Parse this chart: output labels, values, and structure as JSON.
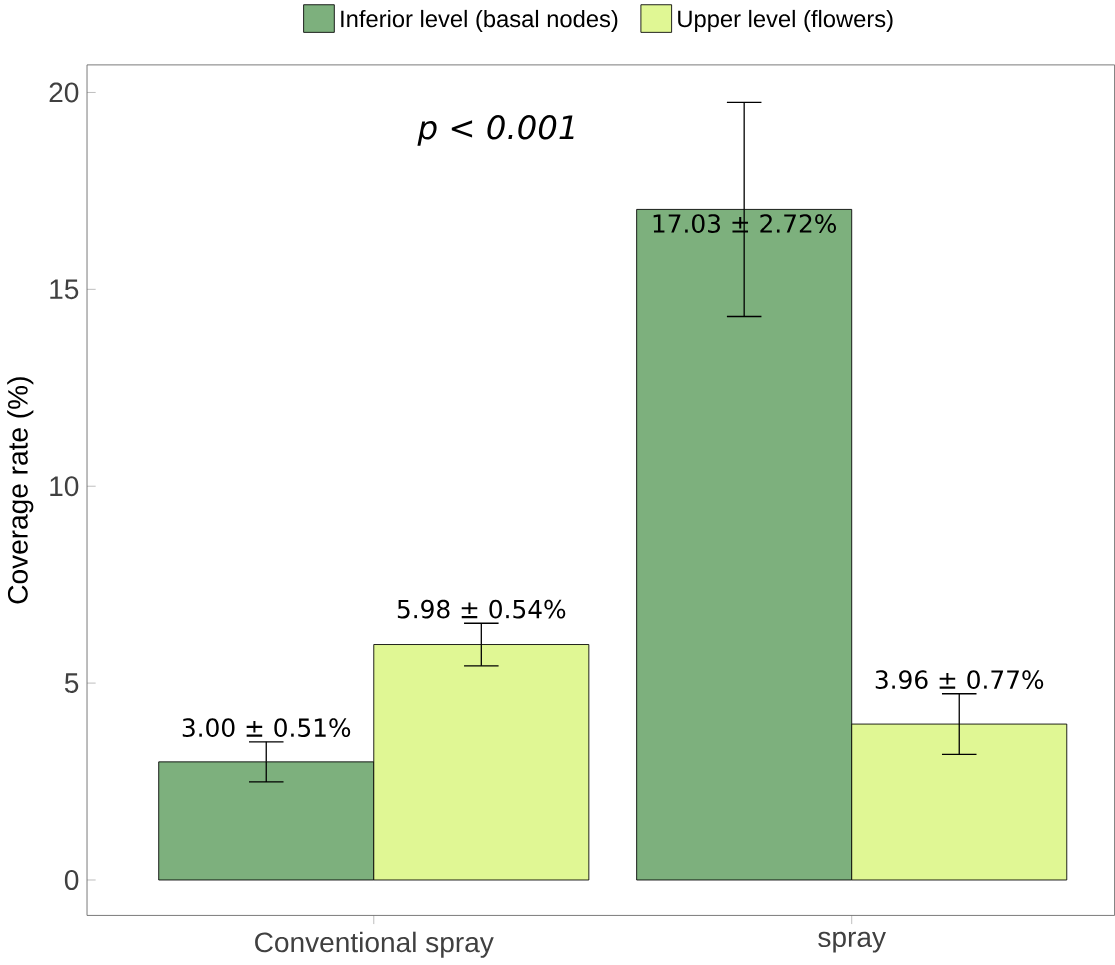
{
  "chart_data": {
    "type": "bar",
    "ylabel": "Coverage rate (%)",
    "categories": [
      "Conventional  spray",
      "spray"
    ],
    "series": [
      {
        "name": "Inferior level (basal nodes)",
        "color": "#7db07d",
        "values": [
          3.0,
          17.03
        ],
        "errors": [
          0.51,
          2.72
        ],
        "value_labels": [
          "3.00 ± 0.51%",
          "17.03 ± 2.72%"
        ]
      },
      {
        "name": "Upper level (flowers)",
        "color": "#e0f794",
        "values": [
          5.98,
          3.96
        ],
        "errors": [
          0.54,
          0.77
        ],
        "value_labels": [
          "5.98 ± 0.54%",
          "3.96 ± 0.77%"
        ]
      }
    ],
    "annotations": [
      "p < 0.001"
    ],
    "ylim": [
      -0.9,
      20.7
    ],
    "yticks": [
      0,
      5,
      10,
      15,
      20
    ],
    "grid": false,
    "legend": "top"
  }
}
